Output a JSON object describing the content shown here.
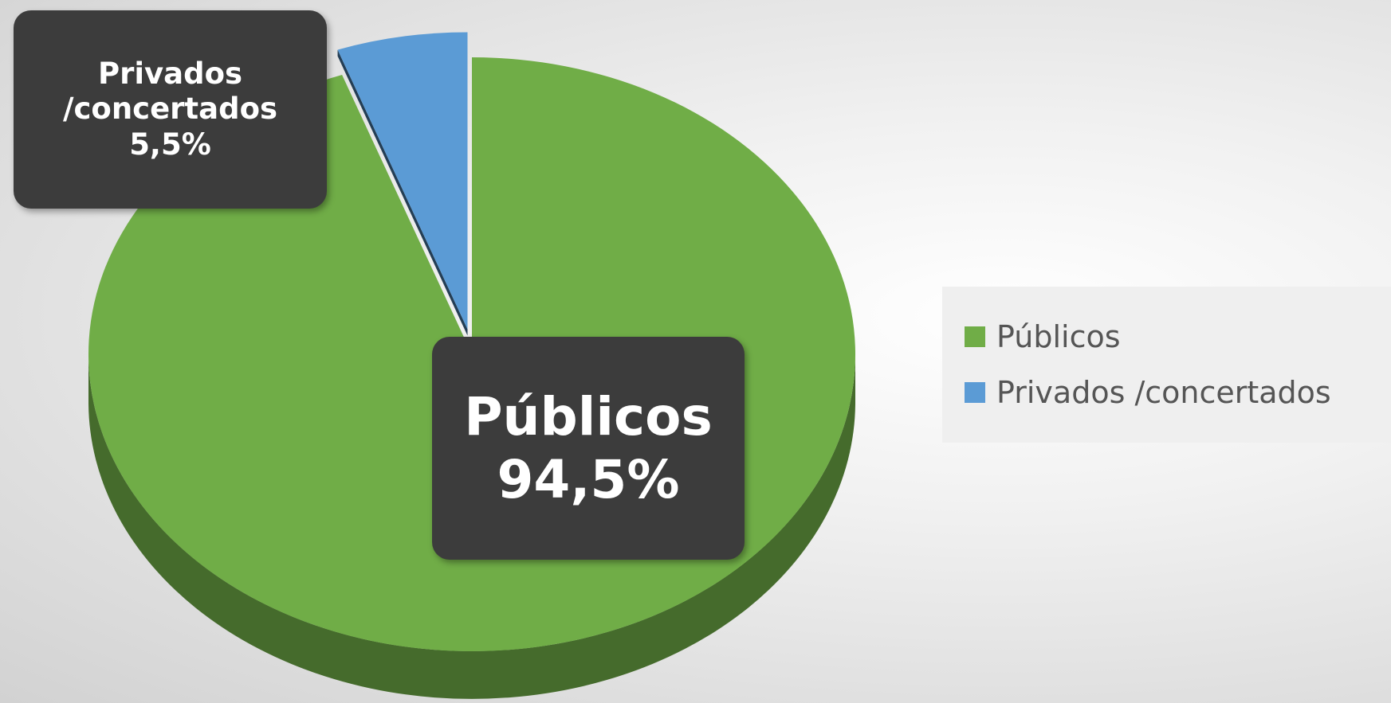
{
  "chart_data": {
    "type": "pie",
    "categories": [
      "Públicos",
      "Privados /concertados"
    ],
    "series": [
      {
        "colors": [
          "#70ad47",
          "#5b9bd5"
        ],
        "values": [
          94.5,
          5.5
        ],
        "value_labels": [
          "94,5%",
          "5,5%"
        ]
      }
    ],
    "legend": "right"
  }
}
